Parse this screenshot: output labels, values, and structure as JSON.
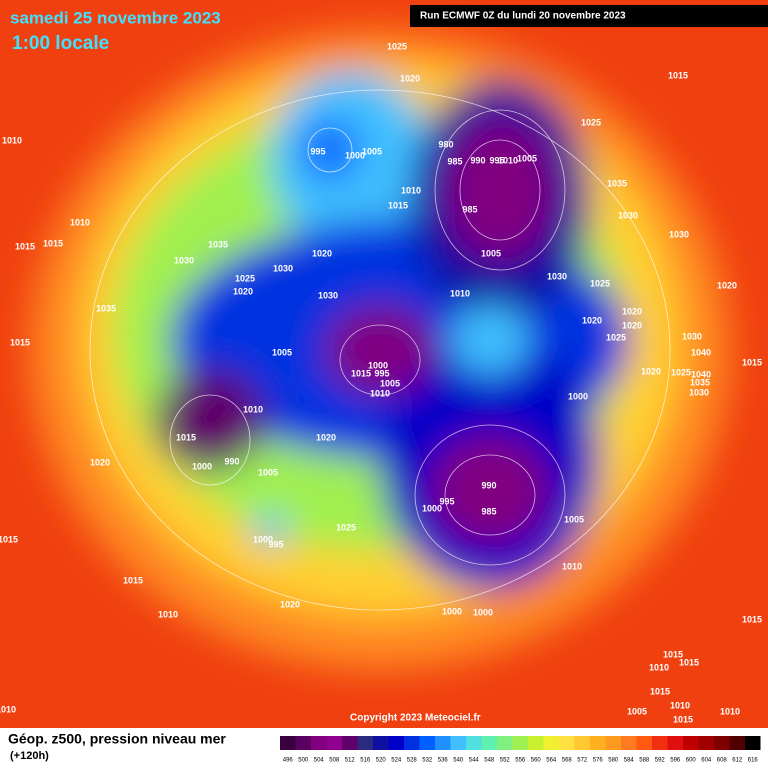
{
  "header": {
    "title": "samedi 25 novembre 2023",
    "subtitle": "1:00 locale",
    "run": "Run ECMWF 0Z du lundi 20 novembre 2023"
  },
  "footer": {
    "copyright": "Copyright 2023 Meteociel.fr",
    "legend_title": "Géop. z500, pression niveau mer",
    "legend_subtitle": "(+120h)"
  },
  "colorbar": {
    "ticks": [
      496,
      500,
      504,
      508,
      512,
      516,
      520,
      524,
      528,
      532,
      536,
      540,
      544,
      548,
      552,
      556,
      560,
      564,
      568,
      572,
      576,
      580,
      584,
      588,
      592,
      596,
      600,
      604,
      608,
      612,
      616
    ],
    "colors": [
      "#3a0040",
      "#5a0060",
      "#800080",
      "#900090",
      "#60006a",
      "#2a2a80",
      "#1010a0",
      "#0000c8",
      "#0030e0",
      "#0060ff",
      "#2090ff",
      "#40c0ff",
      "#50e0e0",
      "#60f0b0",
      "#80f080",
      "#a0f050",
      "#c8f030",
      "#f0f030",
      "#ffe040",
      "#ffc830",
      "#ffb020",
      "#ff9a20",
      "#ff7a20",
      "#ff5a10",
      "#f03010",
      "#e01010",
      "#c00000",
      "#a00000",
      "#800000",
      "#500000",
      "#000000"
    ]
  },
  "isobar_labels": [
    1025,
    1020,
    1015,
    1010,
    995,
    1000,
    1005,
    980,
    985,
    990,
    995,
    1010,
    1005,
    1025,
    1035,
    1010,
    1015,
    985,
    1030,
    1010,
    1015,
    1015,
    1035,
    1030,
    1020,
    1005,
    1030,
    1030,
    1030,
    1025,
    1020,
    1010,
    1025,
    1020,
    1035,
    1030,
    1020,
    1020,
    1020,
    1015,
    1025,
    1030,
    1040,
    1015,
    1005,
    1000,
    1015,
    995,
    1005,
    1010,
    1020,
    1025,
    1040,
    1035,
    1030,
    1000,
    1010,
    1015,
    1020,
    1020,
    1000,
    990,
    1005,
    990,
    995,
    1000,
    985,
    1025,
    1005,
    1000,
    995,
    1015,
    1010,
    1015,
    1020,
    1000,
    1000,
    1010,
    1015,
    1015,
    1015,
    1010,
    1015,
    1010,
    1015,
    1005,
    1010,
    1010
  ]
}
